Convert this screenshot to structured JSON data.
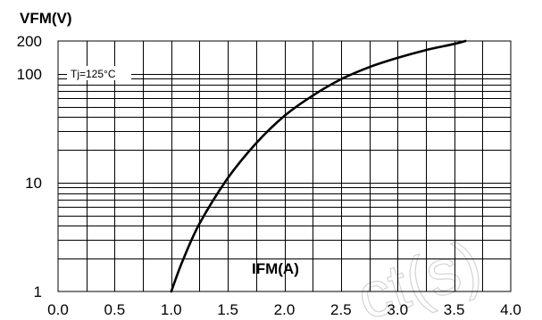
{
  "chart_data": {
    "type": "line",
    "title": "",
    "ylabel": "VFM(V)",
    "xlabel": "IFM(A)",
    "annotation": "Tj=125°C",
    "y_scale": "log",
    "ylim": [
      1,
      200
    ],
    "xlim": [
      0,
      4
    ],
    "grid": true,
    "x_ticks": [
      "0.0",
      "0.5",
      "1.0",
      "1.5",
      "2.0",
      "2.5",
      "3.0",
      "3.5",
      "4.0"
    ],
    "y_ticks": [
      "1",
      "10",
      "100",
      "200"
    ],
    "series": [
      {
        "x": [
          1.0,
          1.1,
          1.25,
          1.5,
          1.75,
          2.0,
          2.25,
          2.5,
          2.75,
          3.0,
          3.25,
          3.5,
          3.6
        ],
        "y": [
          1.0,
          1.9,
          4.2,
          11,
          23,
          41,
          63,
          89,
          115,
          140,
          165,
          188,
          200
        ]
      }
    ]
  },
  "watermark": {
    "text": "ct(s)"
  }
}
